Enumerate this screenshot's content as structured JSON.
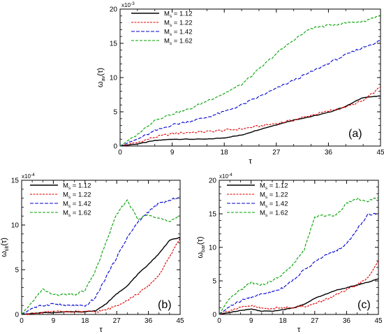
{
  "panel_labels": [
    "(a)",
    "(b)",
    "(c)"
  ],
  "legend_prefix": "M",
  "legend_subscript": "s",
  "legend_entries": [
    "= 1.12",
    "= 1.22",
    "= 1.42",
    "= 1.62"
  ],
  "series_colors": [
    "#000000",
    "#e00000",
    "#0000d0",
    "#00a000"
  ],
  "chart_data": [
    {
      "type": "line",
      "panel": "(a)",
      "xlabel": "τ",
      "ylabel_symbol": "ω",
      "ylabel_subscript": "av",
      "ylabel_suffix": "(τ)",
      "y_exponent_label": "x10",
      "y_exponent": "-3",
      "xlim": [
        0,
        45
      ],
      "ylim": [
        0,
        20
      ],
      "x_ticks": [
        0,
        9,
        18,
        27,
        36,
        45
      ],
      "y_ticks": [
        0,
        5,
        10,
        15,
        20
      ],
      "x": [
        0,
        3,
        6,
        9,
        12,
        15,
        18,
        21,
        24,
        27,
        30,
        33,
        36,
        39,
        42,
        45
      ],
      "series": [
        {
          "name": "Ms = 1.12",
          "values": [
            0,
            0.3,
            0.8,
            1.0,
            1.0,
            1.0,
            1.2,
            1.6,
            2.4,
            3.1,
            3.8,
            4.3,
            4.9,
            5.8,
            7.1,
            7.3
          ]
        },
        {
          "name": "Ms = 1.22",
          "values": [
            0,
            0.5,
            1.3,
            1.8,
            2.0,
            2.1,
            2.3,
            2.5,
            2.9,
            3.3,
            3.8,
            4.5,
            5.1,
            5.7,
            6.6,
            8.6
          ]
        },
        {
          "name": "Ms = 1.42",
          "values": [
            0,
            1.0,
            2.2,
            3.1,
            3.6,
            4.2,
            5.0,
            6.0,
            7.2,
            8.4,
            9.6,
            10.8,
            12.1,
            13.3,
            14.4,
            15.4
          ]
        },
        {
          "name": "Ms = 1.62",
          "values": [
            0,
            1.7,
            3.8,
            4.7,
            5.4,
            6.6,
            7.7,
            9.0,
            11.2,
            13.5,
            15.5,
            17.2,
            17.6,
            18.0,
            18.2,
            19.1
          ]
        }
      ]
    },
    {
      "type": "line",
      "panel": "(b)",
      "xlabel": "τ",
      "ylabel_symbol": "ω",
      "ylabel_subscript": "tilt",
      "ylabel_suffix": "(τ)",
      "y_exponent_label": "x10",
      "y_exponent": "-4",
      "xlim": [
        0,
        45
      ],
      "ylim": [
        0,
        15
      ],
      "x_ticks": [
        0,
        9,
        18,
        27,
        36,
        45
      ],
      "y_ticks": [
        0,
        5,
        10,
        15
      ],
      "x": [
        0,
        3,
        6,
        9,
        12,
        15,
        18,
        21,
        24,
        27,
        30,
        33,
        36,
        39,
        42,
        45
      ],
      "series": [
        {
          "name": "Ms = 1.12",
          "values": [
            0,
            0.1,
            0.2,
            0.2,
            0.3,
            0.3,
            0.3,
            0.4,
            1.2,
            2.3,
            3.2,
            4.5,
            5.6,
            6.8,
            8.3,
            8.6
          ]
        },
        {
          "name": "Ms = 1.22",
          "values": [
            0,
            0.1,
            0.2,
            0.3,
            0.3,
            0.3,
            0.3,
            0.3,
            0.5,
            1.0,
            1.6,
            2.3,
            3.2,
            4.4,
            6.4,
            8.6
          ]
        },
        {
          "name": "Ms = 1.42",
          "values": [
            0,
            0.7,
            1.0,
            1.2,
            1.0,
            1.0,
            0.9,
            1.9,
            4.2,
            6.4,
            8.6,
            10.3,
            11.5,
            12.4,
            12.7,
            13.2
          ]
        },
        {
          "name": "Ms = 1.62",
          "values": [
            0,
            1.4,
            2.8,
            2.2,
            2.2,
            2.2,
            2.7,
            4.9,
            8.1,
            11.2,
            12.8,
            10.6,
            11.2,
            10.8,
            10.3,
            11.1
          ]
        }
      ]
    },
    {
      "type": "line",
      "panel": "(c)",
      "xlabel": "τ",
      "ylabel_symbol": "ω",
      "ylabel_subscript": "bar",
      "ylabel_suffix": "(τ)",
      "y_exponent_label": "x10",
      "y_exponent": "-4",
      "xlim": [
        0,
        45
      ],
      "ylim": [
        0,
        20
      ],
      "x_ticks": [
        0,
        9,
        18,
        27,
        36,
        45
      ],
      "y_ticks": [
        0,
        5,
        10,
        15,
        20
      ],
      "x": [
        0,
        3,
        6,
        9,
        12,
        15,
        18,
        21,
        24,
        27,
        30,
        33,
        36,
        39,
        42,
        45
      ],
      "series": [
        {
          "name": "Ms = 1.12",
          "values": [
            0,
            0.3,
            0.6,
            0.8,
            0.5,
            0.5,
            0.7,
            1.0,
            1.5,
            2.4,
            3.0,
            3.6,
            4.0,
            4.4,
            4.8,
            5.3
          ]
        },
        {
          "name": "Ms = 1.22",
          "values": [
            0,
            0.6,
            1.0,
            1.3,
            0.9,
            0.9,
            1.0,
            1.1,
            1.2,
            1.6,
            2.2,
            2.9,
            3.6,
            4.4,
            5.4,
            8.0
          ]
        },
        {
          "name": "Ms = 1.42",
          "values": [
            0,
            1.2,
            2.0,
            2.6,
            3.0,
            3.4,
            4.0,
            5.2,
            6.6,
            7.8,
            8.8,
            9.5,
            10.5,
            12.7,
            14.9,
            15.0
          ]
        },
        {
          "name": "Ms = 1.62",
          "values": [
            0,
            2.4,
            3.6,
            4.8,
            4.4,
            5.0,
            6.0,
            7.5,
            9.6,
            14.5,
            14.8,
            14.8,
            16.6,
            17.3,
            16.8,
            17.5
          ]
        }
      ]
    }
  ]
}
